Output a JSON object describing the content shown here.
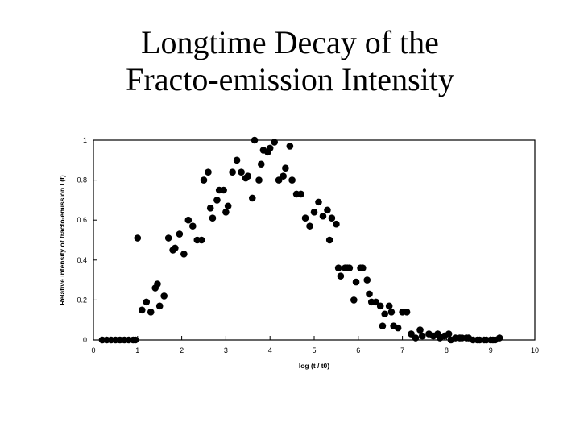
{
  "slide": {
    "title_line1": "Longtime Decay of the",
    "title_line2": "Fracto-emission Intensity"
  },
  "chart_data": {
    "type": "scatter",
    "title": "Longtime Decay of the Fracto-emission Intensity",
    "xlabel": "log (t / t0)",
    "ylabel": "Relative intensity of fracto-emission I (t)",
    "xlim": [
      0,
      10
    ],
    "ylim": [
      0,
      1
    ],
    "x_ticks": [
      "0",
      "1",
      "2",
      "3",
      "4",
      "5",
      "6",
      "7",
      "8",
      "9",
      "10"
    ],
    "y_ticks": [
      "0",
      "0.2",
      "0.4",
      "0.6",
      "0.8",
      "1"
    ],
    "grid": false,
    "points_color": "#000000",
    "series": [
      {
        "x": [
          0.2,
          0.3,
          0.4,
          0.5,
          0.6,
          0.7,
          0.8,
          0.9,
          0.95,
          1.0,
          1.1,
          1.2,
          1.3,
          1.4,
          1.45,
          1.5,
          1.6,
          1.7,
          1.8,
          1.85,
          1.95,
          2.05,
          2.15,
          2.25,
          2.35,
          2.45,
          2.5,
          2.6,
          2.65,
          2.7,
          2.8,
          2.85,
          2.95,
          3.0,
          3.05,
          3.15,
          3.25,
          3.35,
          3.45,
          3.5,
          3.6,
          3.65,
          3.75,
          3.8,
          3.85,
          3.95,
          4.0,
          4.1,
          4.2,
          4.3,
          4.35,
          4.45,
          4.5,
          4.6,
          4.7,
          4.8,
          4.9,
          5.0,
          5.1,
          5.2,
          5.3,
          5.35,
          5.4,
          5.5,
          5.55,
          5.6,
          5.7,
          5.75,
          5.8,
          5.9,
          5.95,
          6.05,
          6.1,
          6.2,
          6.25,
          6.3,
          6.4,
          6.5,
          6.55,
          6.6,
          6.7,
          6.75,
          6.8,
          6.9,
          7.0,
          7.1,
          7.2,
          7.3,
          7.4,
          7.45,
          7.6,
          7.7,
          7.8,
          7.85,
          7.95,
          8.05,
          8.1,
          8.2,
          8.3,
          8.35,
          8.45,
          8.5,
          8.6,
          8.7,
          8.75,
          8.85,
          8.9,
          9.0,
          9.05,
          9.1,
          9.2
        ],
        "y": [
          0,
          0,
          0,
          0,
          0,
          0,
          0,
          0,
          0,
          0.51,
          0.15,
          0.19,
          0.14,
          0.26,
          0.28,
          0.17,
          0.22,
          0.51,
          0.45,
          0.46,
          0.53,
          0.43,
          0.6,
          0.57,
          0.5,
          0.5,
          0.8,
          0.84,
          0.66,
          0.61,
          0.7,
          0.75,
          0.75,
          0.64,
          0.67,
          0.84,
          0.9,
          0.84,
          0.81,
          0.82,
          0.71,
          1.0,
          0.8,
          0.88,
          0.95,
          0.94,
          0.96,
          0.99,
          0.8,
          0.82,
          0.86,
          0.97,
          0.8,
          0.73,
          0.73,
          0.61,
          0.57,
          0.64,
          0.69,
          0.62,
          0.65,
          0.5,
          0.61,
          0.58,
          0.36,
          0.32,
          0.36,
          0.36,
          0.36,
          0.2,
          0.29,
          0.36,
          0.36,
          0.3,
          0.23,
          0.19,
          0.19,
          0.17,
          0.07,
          0.13,
          0.17,
          0.14,
          0.07,
          0.06,
          0.14,
          0.14,
          0.03,
          0.01,
          0.05,
          0.02,
          0.03,
          0.02,
          0.03,
          0.01,
          0.02,
          0.03,
          0.0,
          0.01,
          0.01,
          0.01,
          0.01,
          0.01,
          0.0,
          0.0,
          0.0,
          0.0,
          0.0,
          0.0,
          0.0,
          0.0,
          0.01
        ]
      }
    ]
  }
}
